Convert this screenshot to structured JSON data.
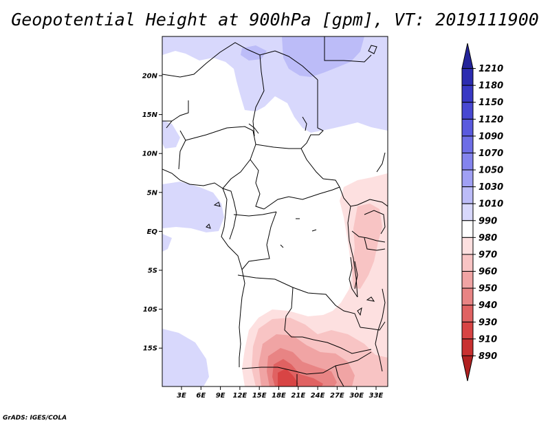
{
  "title": "Geopotential Height at 900hPa [gpm], VT: 2019111900",
  "credit": "GrADS: IGES/COLA",
  "map": {
    "lon_labels": [
      "3E",
      "6E",
      "9E",
      "12E",
      "15E",
      "18E",
      "21E",
      "24E",
      "27E",
      "30E",
      "33E"
    ],
    "lat_labels": [
      "20N",
      "15N",
      "10N",
      "5N",
      "EQ",
      "5S",
      "10S",
      "15S"
    ]
  },
  "colorbar": {
    "levels": [
      "1210",
      "1180",
      "1150",
      "1120",
      "1090",
      "1070",
      "1050",
      "1030",
      "1010",
      "990",
      "980",
      "970",
      "960",
      "950",
      "940",
      "930",
      "910",
      "890"
    ],
    "colors": [
      "#24249a",
      "#2c2cb0",
      "#3838c4",
      "#4848d2",
      "#5a5ade",
      "#6e6ee6",
      "#8484ee",
      "#a0a0f4",
      "#bcbcf8",
      "#d8d8fc",
      "#ffffff",
      "#fde0e0",
      "#f8c4c4",
      "#f0a4a4",
      "#e88484",
      "#e06262",
      "#d84444",
      "#c83030",
      "#b02020"
    ]
  }
}
